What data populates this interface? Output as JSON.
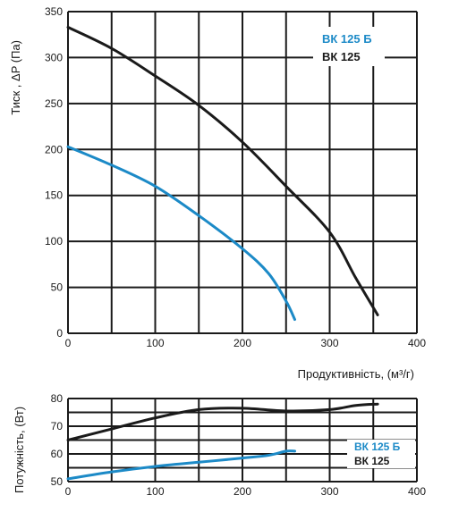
{
  "chart_data": [
    {
      "type": "line",
      "xlabel": "Продуктивність, (м³/г)",
      "ylabel": "Тиск , ΔP (Па)",
      "xlim": [
        0,
        400
      ],
      "ylim": [
        0,
        350
      ],
      "x_ticks": [
        "0",
        "100",
        "200",
        "300",
        "400"
      ],
      "y_ticks": [
        "0",
        "50",
        "100",
        "150",
        "200",
        "250",
        "300",
        "350"
      ],
      "grid": true,
      "legend_position": "top-right",
      "series": [
        {
          "name": "ВК 125 Б",
          "color": "#1c8ac7",
          "x": [
            0,
            50,
            100,
            150,
            200,
            230,
            250,
            260
          ],
          "y": [
            203,
            183,
            160,
            128,
            92,
            65,
            35,
            15
          ]
        },
        {
          "name": "ВК 125",
          "color": "#1a1a1a",
          "x": [
            0,
            50,
            100,
            150,
            200,
            250,
            300,
            330,
            355
          ],
          "y": [
            333,
            310,
            280,
            248,
            208,
            160,
            110,
            60,
            20
          ]
        }
      ]
    },
    {
      "type": "line",
      "xlabel": "",
      "ylabel": "Потужність, (Вт)",
      "xlim": [
        0,
        400
      ],
      "ylim": [
        50,
        80
      ],
      "x_ticks": [
        "0",
        "100",
        "200",
        "300",
        "400"
      ],
      "y_ticks": [
        "50",
        "60",
        "70",
        "80"
      ],
      "grid": true,
      "legend_position": "right",
      "series": [
        {
          "name": "ВК 125 Б",
          "color": "#1c8ac7",
          "x": [
            0,
            50,
            100,
            150,
            200,
            230,
            250,
            260
          ],
          "y": [
            51,
            53.5,
            55.5,
            57,
            58.5,
            59.5,
            61,
            61
          ]
        },
        {
          "name": "ВК 125",
          "color": "#1a1a1a",
          "x": [
            0,
            50,
            100,
            150,
            200,
            250,
            300,
            330,
            355
          ],
          "y": [
            65,
            69,
            73,
            76,
            76.5,
            75.5,
            76,
            77.5,
            78
          ]
        }
      ]
    }
  ]
}
